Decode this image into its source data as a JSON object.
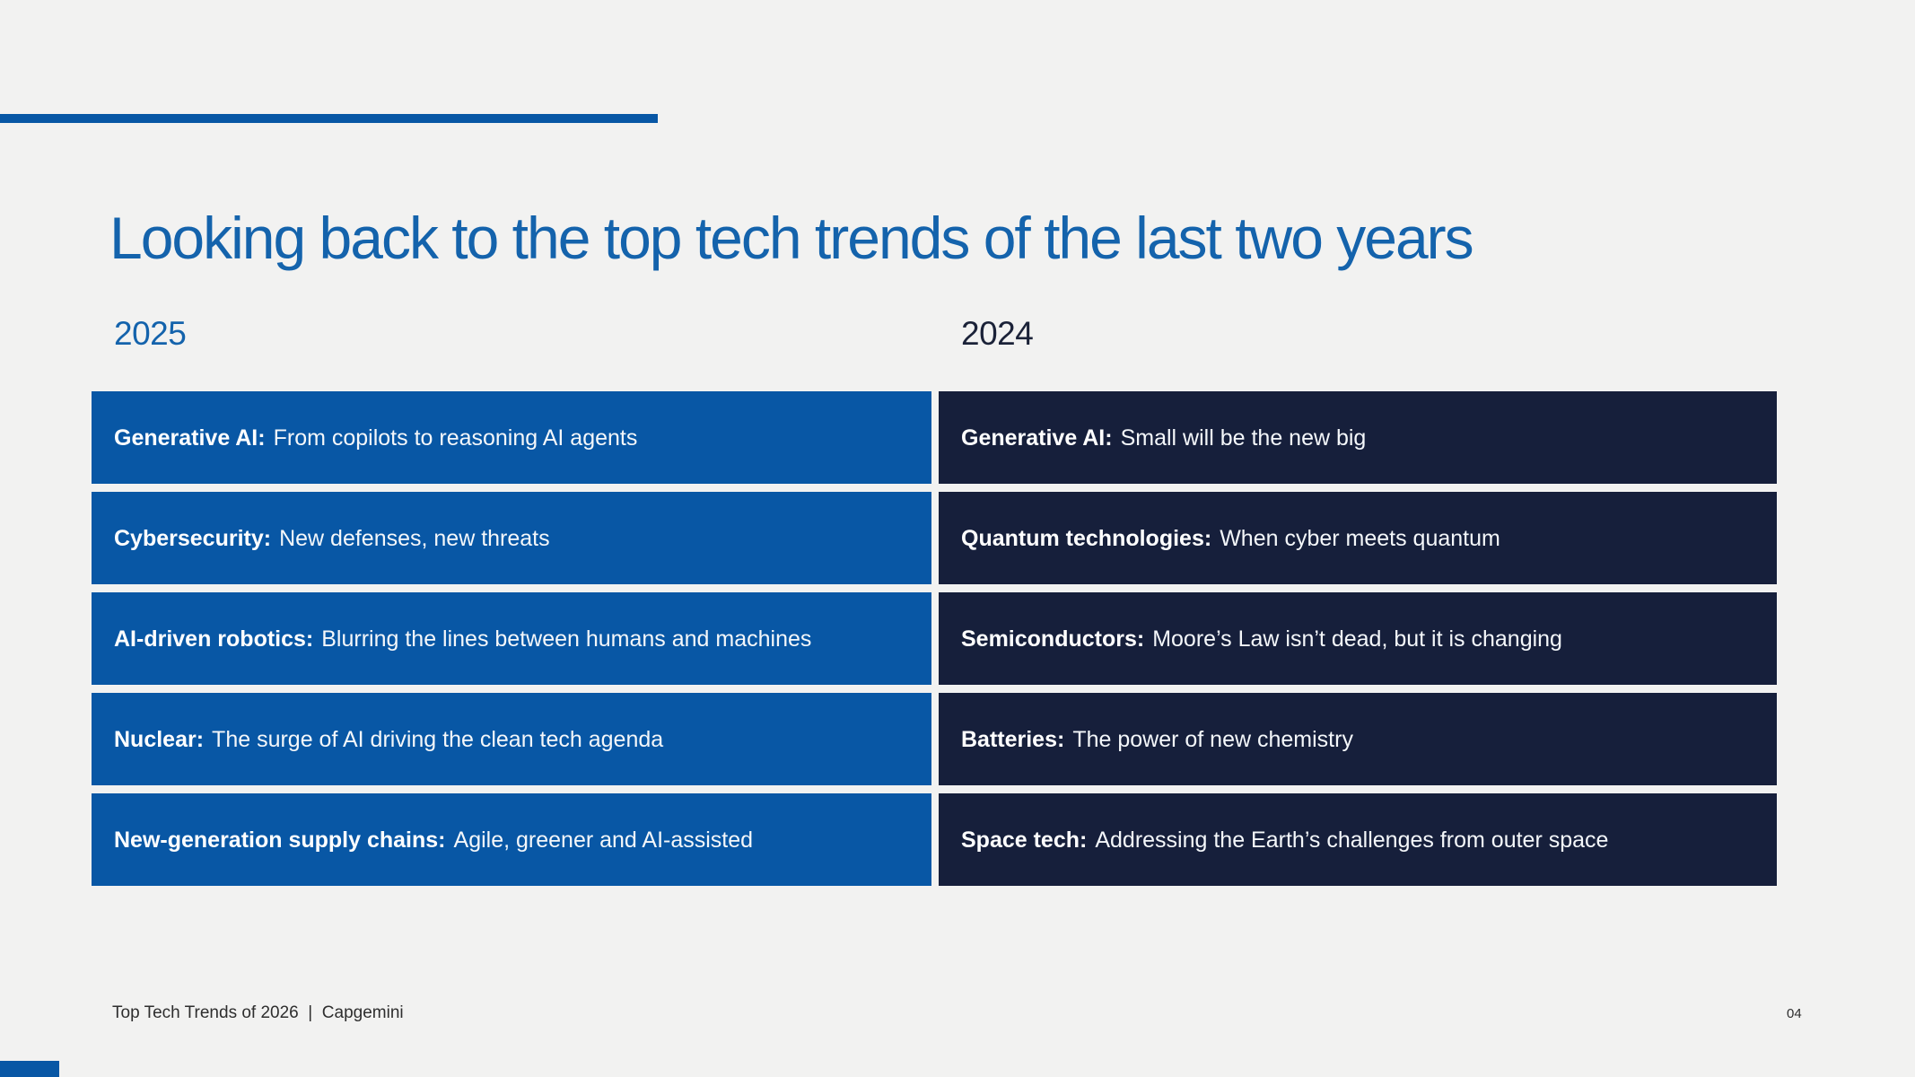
{
  "slide": {
    "background_color": "#f2f2f1",
    "accent_color": "#0857a5",
    "dark_navy_color": "#161f3b"
  },
  "title": {
    "text": "Looking back to the top tech trends of the last two years",
    "color": "#1463ac"
  },
  "columns": [
    {
      "year": "2025",
      "year_color": "#1463ac",
      "row_color": "#0857a5",
      "rows": [
        {
          "label": "Generative AI:",
          "text": "From copilots to reasoning AI agents"
        },
        {
          "label": "Cybersecurity:",
          "text": "New defenses, new threats"
        },
        {
          "label": "AI-driven robotics:",
          "text": "Blurring the lines between humans and machines"
        },
        {
          "label": "Nuclear:",
          "text": "The surge of AI driving the clean tech agenda"
        },
        {
          "label": "New-generation supply chains:",
          "text": "Agile, greener and AI-assisted"
        }
      ]
    },
    {
      "year": "2024",
      "year_color": "#1b2238",
      "row_color": "#161f3b",
      "rows": [
        {
          "label": "Generative AI:",
          "text": "Small will be the new big"
        },
        {
          "label": "Quantum technologies:",
          "text": "When cyber meets quantum"
        },
        {
          "label": "Semiconductors:",
          "text": "Moore’s Law isn’t dead, but it is changing"
        },
        {
          "label": "Batteries:",
          "text": "The power of new chemistry"
        },
        {
          "label": "Space tech:",
          "text": "Addressing the Earth’s challenges from outer space"
        }
      ]
    }
  ],
  "footer": {
    "left_text": "Top Tech Trends of 2026  |  Capgemini",
    "page_number": "04"
  }
}
